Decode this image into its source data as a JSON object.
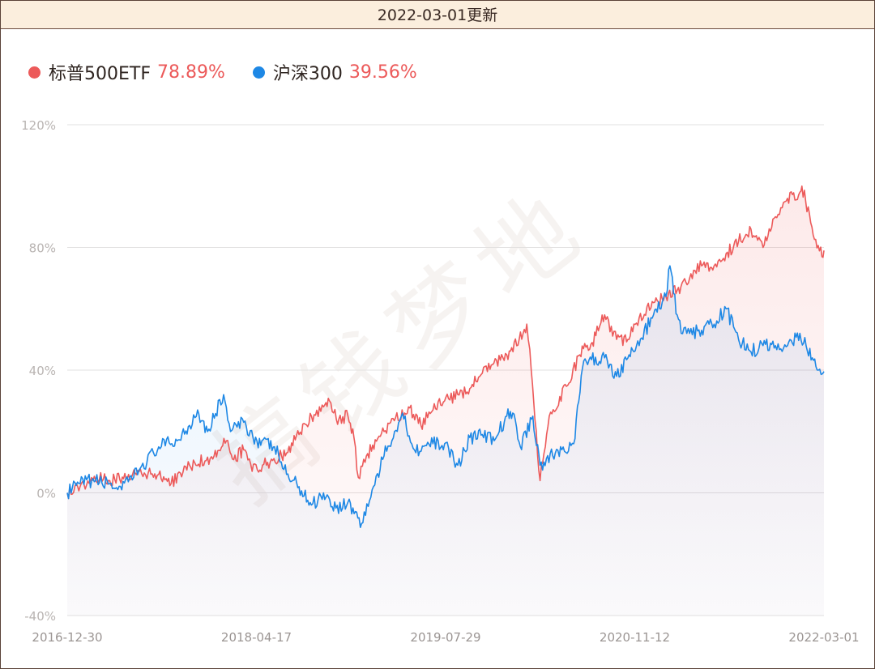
{
  "header": {
    "title": "2022-03-01更新"
  },
  "watermark": "搞钱梦地",
  "legend": [
    {
      "name": "标普500ETF",
      "value": "78.89%",
      "color": "#ec5a5a"
    },
    {
      "name": "沪深300",
      "value": "39.56%",
      "color": "#1e88e5"
    }
  ],
  "value_color": "#ec5a5a",
  "chart_data": {
    "type": "line",
    "title": "",
    "xlabel": "",
    "ylabel": "",
    "x_ticks": [
      "2016-12-30",
      "2018-04-17",
      "2019-07-29",
      "2020-11-12",
      "2022-03-01"
    ],
    "y_ticks": [
      "120%",
      "80%",
      "40%",
      "0%",
      "-40%"
    ],
    "ylim": [
      -40,
      120
    ],
    "xlim": [
      "2016-12-30",
      "2022-03-01"
    ],
    "grid": true,
    "legend_position": "top-left",
    "series": [
      {
        "name": "标普500ETF",
        "color": "#ec5a5a",
        "points": [
          [
            "2016-12-30",
            0
          ],
          [
            "2017-01-31",
            2
          ],
          [
            "2017-03-01",
            5
          ],
          [
            "2017-04-15",
            4
          ],
          [
            "2017-06-01",
            6
          ],
          [
            "2017-08-15",
            6
          ],
          [
            "2017-09-15",
            3
          ],
          [
            "2017-10-31",
            9
          ],
          [
            "2017-12-31",
            12
          ],
          [
            "2018-01-31",
            17
          ],
          [
            "2018-02-15",
            11
          ],
          [
            "2018-03-15",
            14
          ],
          [
            "2018-04-05",
            7
          ],
          [
            "2018-05-01",
            9
          ],
          [
            "2018-05-20",
            10
          ],
          [
            "2018-06-30",
            13
          ],
          [
            "2018-07-31",
            19
          ],
          [
            "2018-08-31",
            25
          ],
          [
            "2018-09-30",
            28
          ],
          [
            "2018-10-15",
            30
          ],
          [
            "2018-11-01",
            24
          ],
          [
            "2018-11-30",
            25
          ],
          [
            "2018-12-15",
            18
          ],
          [
            "2018-12-26",
            5
          ],
          [
            "2019-01-15",
            12
          ],
          [
            "2019-02-28",
            20
          ],
          [
            "2019-04-30",
            28
          ],
          [
            "2019-05-31",
            22
          ],
          [
            "2019-06-30",
            27
          ],
          [
            "2019-07-29",
            30
          ],
          [
            "2019-08-31",
            32
          ],
          [
            "2019-09-30",
            34
          ],
          [
            "2019-10-31",
            39
          ],
          [
            "2019-12-31",
            45
          ],
          [
            "2020-01-31",
            50
          ],
          [
            "2020-02-19",
            55
          ],
          [
            "2020-03-01",
            40
          ],
          [
            "2020-03-23",
            4
          ],
          [
            "2020-04-15",
            25
          ],
          [
            "2020-05-31",
            35
          ],
          [
            "2020-06-30",
            45
          ],
          [
            "2020-07-31",
            49
          ],
          [
            "2020-08-31",
            58
          ],
          [
            "2020-09-30",
            50
          ],
          [
            "2020-10-31",
            50
          ],
          [
            "2020-11-12",
            55
          ],
          [
            "2020-12-31",
            62
          ],
          [
            "2021-01-31",
            64
          ],
          [
            "2021-02-28",
            66
          ],
          [
            "2021-03-31",
            70
          ],
          [
            "2021-04-30",
            74
          ],
          [
            "2021-05-31",
            74
          ],
          [
            "2021-06-30",
            78
          ],
          [
            "2021-07-31",
            82
          ],
          [
            "2021-08-31",
            86
          ],
          [
            "2021-09-30",
            80
          ],
          [
            "2021-10-31",
            90
          ],
          [
            "2021-11-30",
            96
          ],
          [
            "2021-12-31",
            98
          ],
          [
            "2022-01-05",
            100
          ],
          [
            "2022-01-27",
            88
          ],
          [
            "2022-02-24",
            77
          ],
          [
            "2022-03-01",
            79
          ]
        ]
      },
      {
        "name": "沪深300",
        "color": "#1e88e5",
        "points": [
          [
            "2016-12-30",
            0
          ],
          [
            "2017-01-31",
            3
          ],
          [
            "2017-03-01",
            4
          ],
          [
            "2017-04-15",
            3
          ],
          [
            "2017-05-15",
            1
          ],
          [
            "2017-06-30",
            8
          ],
          [
            "2017-08-15",
            15
          ],
          [
            "2017-09-30",
            17
          ],
          [
            "2017-10-31",
            22
          ],
          [
            "2017-11-20",
            27
          ],
          [
            "2017-12-15",
            20
          ],
          [
            "2018-01-24",
            32
          ],
          [
            "2018-02-10",
            20
          ],
          [
            "2018-03-15",
            23
          ],
          [
            "2018-04-17",
            17
          ],
          [
            "2018-05-31",
            15
          ],
          [
            "2018-06-30",
            6
          ],
          [
            "2018-07-31",
            2
          ],
          [
            "2018-08-31",
            -4
          ],
          [
            "2018-09-30",
            0
          ],
          [
            "2018-10-31",
            -5
          ],
          [
            "2018-11-30",
            -3
          ],
          [
            "2019-01-03",
            -10
          ],
          [
            "2019-02-28",
            12
          ],
          [
            "2019-04-15",
            26
          ],
          [
            "2019-05-15",
            14
          ],
          [
            "2019-06-30",
            16
          ],
          [
            "2019-07-29",
            16
          ],
          [
            "2019-08-31",
            9
          ],
          [
            "2019-09-30",
            18
          ],
          [
            "2019-10-31",
            19
          ],
          [
            "2019-11-30",
            17
          ],
          [
            "2019-12-31",
            25
          ],
          [
            "2020-01-15",
            26
          ],
          [
            "2020-02-03",
            15
          ],
          [
            "2020-03-05",
            25
          ],
          [
            "2020-03-23",
            9
          ],
          [
            "2020-04-30",
            13
          ],
          [
            "2020-06-15",
            16
          ],
          [
            "2020-07-10",
            43
          ],
          [
            "2020-08-31",
            44
          ],
          [
            "2020-09-30",
            38
          ],
          [
            "2020-10-31",
            45
          ],
          [
            "2020-11-12",
            46
          ],
          [
            "2020-12-31",
            58
          ],
          [
            "2021-01-31",
            64
          ],
          [
            "2021-02-10",
            74
          ],
          [
            "2021-02-28",
            58
          ],
          [
            "2021-03-10",
            52
          ],
          [
            "2021-03-31",
            52
          ],
          [
            "2021-04-30",
            53
          ],
          [
            "2021-05-31",
            55
          ],
          [
            "2021-06-30",
            60
          ],
          [
            "2021-07-31",
            50
          ],
          [
            "2021-08-31",
            46
          ],
          [
            "2021-09-30",
            48
          ],
          [
            "2021-10-31",
            48
          ],
          [
            "2021-11-30",
            48
          ],
          [
            "2021-12-31",
            52
          ],
          [
            "2022-01-31",
            44
          ],
          [
            "2022-02-15",
            40
          ],
          [
            "2022-03-01",
            39.56
          ]
        ]
      }
    ]
  }
}
